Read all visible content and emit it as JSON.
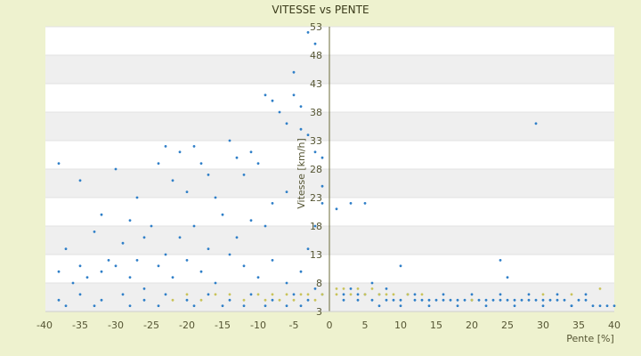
{
  "chart_data": {
    "type": "scatter",
    "title": "VITESSE vs PENTE",
    "xlabel": "Pente [%]",
    "ylabel": "Vitesse [km/h]",
    "xlim": [
      -40,
      40
    ],
    "ylim": [
      3,
      53
    ],
    "x_ticks": [
      -40,
      -35,
      -30,
      -25,
      -20,
      -15,
      -10,
      -5,
      0,
      5,
      10,
      15,
      20,
      25,
      30,
      35,
      40
    ],
    "y_ticks": [
      3,
      8,
      13,
      18,
      23,
      28,
      33,
      38,
      43,
      48,
      53
    ],
    "grid": "alternating horizontal bands",
    "legend": "none",
    "colors": {
      "series_blue": "#2f7fc8",
      "series_yellow": "#c9c35a",
      "plot_bg": "#ffffff",
      "band": "#efefef",
      "outer_bg": "#eef2cf"
    },
    "series": [
      {
        "color": "series_blue",
        "points": [
          [
            -38,
            29
          ],
          [
            -35,
            26
          ],
          [
            -32,
            20
          ],
          [
            -30,
            28
          ],
          [
            -28,
            19
          ],
          [
            -27,
            23
          ],
          [
            -26,
            16
          ],
          [
            -24,
            29
          ],
          [
            -23,
            32
          ],
          [
            -22,
            26
          ],
          [
            -21,
            31
          ],
          [
            -20,
            24
          ],
          [
            -19,
            32
          ],
          [
            -18,
            29
          ],
          [
            -17,
            27
          ],
          [
            -16,
            23
          ],
          [
            -14,
            33
          ],
          [
            -13,
            30
          ],
          [
            -12,
            27
          ],
          [
            -11,
            31
          ],
          [
            -10,
            29
          ],
          [
            -9,
            41
          ],
          [
            -8,
            40
          ],
          [
            -7,
            38
          ],
          [
            -6,
            36
          ],
          [
            -5,
            41
          ],
          [
            -5,
            45
          ],
          [
            -4,
            39
          ],
          [
            -4,
            35
          ],
          [
            -3,
            34
          ],
          [
            -3,
            52
          ],
          [
            -2,
            50
          ],
          [
            -2,
            31
          ],
          [
            -1,
            30
          ],
          [
            -1,
            25
          ],
          [
            -6,
            24
          ],
          [
            -8,
            22
          ],
          [
            -9,
            18
          ],
          [
            -11,
            19
          ],
          [
            -13,
            16
          ],
          [
            -15,
            20
          ],
          [
            -17,
            14
          ],
          [
            -19,
            18
          ],
          [
            -21,
            16
          ],
          [
            -23,
            13
          ],
          [
            -25,
            18
          ],
          [
            -27,
            12
          ],
          [
            -29,
            15
          ],
          [
            -31,
            12
          ],
          [
            -33,
            17
          ],
          [
            -35,
            11
          ],
          [
            -37,
            14
          ],
          [
            -38,
            10
          ],
          [
            -36,
            8
          ],
          [
            -34,
            9
          ],
          [
            -32,
            10
          ],
          [
            -30,
            11
          ],
          [
            -28,
            9
          ],
          [
            -26,
            7
          ],
          [
            -24,
            11
          ],
          [
            -22,
            9
          ],
          [
            -20,
            12
          ],
          [
            -18,
            10
          ],
          [
            -16,
            8
          ],
          [
            -14,
            13
          ],
          [
            -12,
            11
          ],
          [
            -10,
            9
          ],
          [
            -8,
            12
          ],
          [
            -6,
            8
          ],
          [
            -4,
            10
          ],
          [
            -3,
            14
          ],
          [
            -2,
            18
          ],
          [
            -1,
            22
          ],
          [
            -38,
            5
          ],
          [
            -35,
            6
          ],
          [
            -32,
            5
          ],
          [
            -29,
            6
          ],
          [
            -26,
            5
          ],
          [
            -23,
            6
          ],
          [
            -20,
            5
          ],
          [
            -17,
            6
          ],
          [
            -14,
            5
          ],
          [
            -11,
            6
          ],
          [
            -8,
            5
          ],
          [
            -5,
            6
          ],
          [
            -3,
            5
          ],
          [
            -2,
            7
          ],
          [
            -1,
            6
          ],
          [
            -37,
            4
          ],
          [
            -33,
            4
          ],
          [
            -28,
            4
          ],
          [
            -24,
            4
          ],
          [
            -19,
            4
          ],
          [
            -15,
            4
          ],
          [
            -12,
            4
          ],
          [
            -9,
            4
          ],
          [
            -6,
            4
          ],
          [
            -4,
            4
          ],
          [
            1,
            21
          ],
          [
            2,
            6
          ],
          [
            3,
            22
          ],
          [
            3,
            7
          ],
          [
            4,
            6
          ],
          [
            5,
            22
          ],
          [
            5,
            6
          ],
          [
            6,
            5
          ],
          [
            7,
            6
          ],
          [
            8,
            5
          ],
          [
            9,
            5
          ],
          [
            10,
            11
          ],
          [
            10,
            5
          ],
          [
            11,
            6
          ],
          [
            12,
            5
          ],
          [
            13,
            5
          ],
          [
            14,
            5
          ],
          [
            15,
            5
          ],
          [
            16,
            5
          ],
          [
            17,
            5
          ],
          [
            18,
            5
          ],
          [
            19,
            5
          ],
          [
            20,
            5
          ],
          [
            21,
            5
          ],
          [
            22,
            5
          ],
          [
            23,
            5
          ],
          [
            24,
            12
          ],
          [
            24,
            5
          ],
          [
            25,
            9
          ],
          [
            25,
            5
          ],
          [
            26,
            5
          ],
          [
            27,
            5
          ],
          [
            28,
            5
          ],
          [
            29,
            36
          ],
          [
            29,
            5
          ],
          [
            30,
            5
          ],
          [
            31,
            5
          ],
          [
            32,
            5
          ],
          [
            33,
            5
          ],
          [
            34,
            4
          ],
          [
            35,
            5
          ],
          [
            36,
            5
          ],
          [
            37,
            4
          ],
          [
            38,
            4
          ],
          [
            39,
            4
          ],
          [
            40,
            4
          ],
          [
            6,
            8
          ],
          [
            8,
            7
          ],
          [
            12,
            6
          ],
          [
            16,
            6
          ],
          [
            20,
            6
          ],
          [
            24,
            6
          ],
          [
            28,
            6
          ],
          [
            32,
            6
          ],
          [
            36,
            6
          ],
          [
            2,
            5
          ],
          [
            4,
            5
          ],
          [
            7,
            4
          ],
          [
            10,
            4
          ],
          [
            14,
            4
          ],
          [
            18,
            4
          ],
          [
            22,
            4
          ],
          [
            26,
            4
          ],
          [
            30,
            4
          ],
          [
            34,
            4
          ]
        ]
      },
      {
        "color": "series_yellow",
        "points": [
          [
            -22,
            5
          ],
          [
            -20,
            6
          ],
          [
            -18,
            5
          ],
          [
            -16,
            6
          ],
          [
            -14,
            6
          ],
          [
            -12,
            5
          ],
          [
            -10,
            6
          ],
          [
            -9,
            5
          ],
          [
            -8,
            6
          ],
          [
            -7,
            5
          ],
          [
            -6,
            6
          ],
          [
            -5,
            5
          ],
          [
            -4,
            6
          ],
          [
            -3,
            6
          ],
          [
            -2,
            5
          ],
          [
            -1,
            6
          ],
          [
            1,
            7
          ],
          [
            1,
            6
          ],
          [
            2,
            7
          ],
          [
            3,
            6
          ],
          [
            4,
            7
          ],
          [
            5,
            6
          ],
          [
            6,
            7
          ],
          [
            7,
            6
          ],
          [
            8,
            6
          ],
          [
            9,
            6
          ],
          [
            11,
            6
          ],
          [
            13,
            6
          ],
          [
            20,
            5
          ],
          [
            30,
            6
          ],
          [
            34,
            6
          ],
          [
            38,
            7
          ]
        ]
      }
    ]
  }
}
